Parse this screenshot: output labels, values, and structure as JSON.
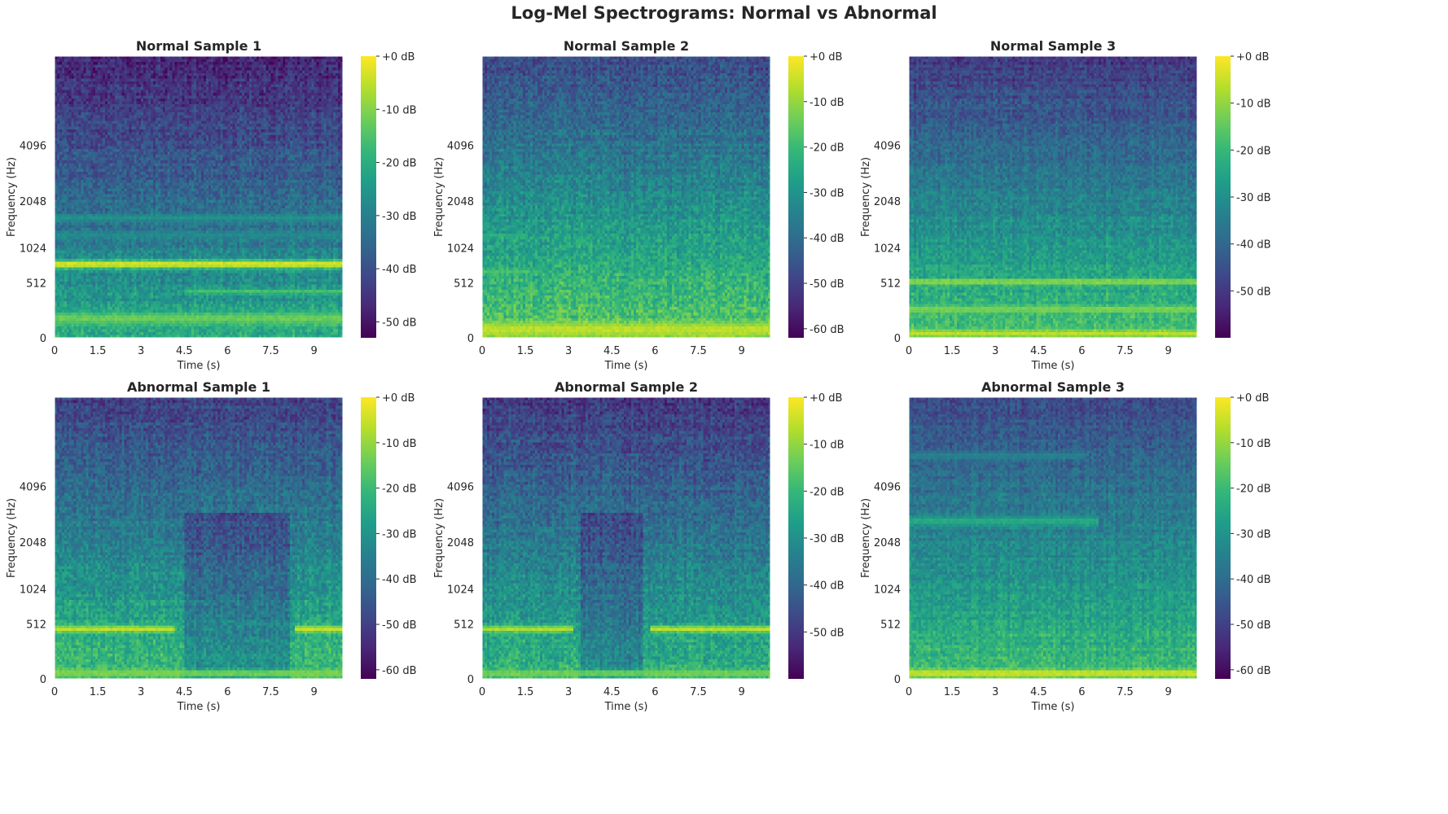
{
  "suptitle": "Log-Mel Spectrograms: Normal vs Abnormal",
  "shared": {
    "xlabel": "Time (s)",
    "ylabel": "Frequency (Hz)",
    "x_ticks": [
      0,
      1.5,
      3,
      4.5,
      6,
      7.5,
      9
    ],
    "x_tick_labels": [
      "0",
      "1.5",
      "3",
      "4.5",
      "6",
      "7.5",
      "9"
    ],
    "xlim": [
      0,
      10
    ],
    "y_ticks_hz": [
      0,
      512,
      1024,
      2048,
      4096
    ],
    "y_tick_labels": [
      "0",
      "512",
      "1024",
      "2048",
      "4096"
    ],
    "y_scale": "mel",
    "colormap": "viridis",
    "colormap_stops": [
      "#440154",
      "#482878",
      "#3e4989",
      "#31688e",
      "#26828e",
      "#1f9e89",
      "#35b779",
      "#6ece58",
      "#b5de2b",
      "#fde725"
    ]
  },
  "chart_data": [
    {
      "type": "heatmap",
      "title": "Normal Sample 1",
      "seed": 11,
      "vmin": -53,
      "vmax": 0,
      "cbar_ticks": [
        0,
        -10,
        -20,
        -30,
        -40,
        -50
      ],
      "cbar_labels": [
        "+0 dB",
        "-10 dB",
        "-20 dB",
        "-30 dB",
        "-40 dB",
        "-50 dB"
      ],
      "base_db": -20,
      "top_db": -48,
      "noise_db": 5,
      "bands": [
        {
          "hz": 760,
          "width_hz": 45,
          "db": -2,
          "t0": 0,
          "t1": 10
        },
        {
          "hz": 1620,
          "width_hz": 60,
          "db": -26,
          "t0": 0,
          "t1": 10
        },
        {
          "hz": 1260,
          "width_hz": 50,
          "db": -28,
          "t0": 0,
          "t1": 10
        },
        {
          "hz": 410,
          "width_hz": 20,
          "db": -16,
          "t0": 4.5,
          "t1": 10
        },
        {
          "hz": 150,
          "width_hz": 40,
          "db": -12,
          "t0": 0,
          "t1": 10
        }
      ]
    },
    {
      "type": "heatmap",
      "title": "Normal Sample 2",
      "seed": 23,
      "vmin": -62,
      "vmax": 0,
      "cbar_ticks": [
        0,
        -10,
        -20,
        -30,
        -40,
        -50,
        -60
      ],
      "cbar_labels": [
        "+0 dB",
        "-10 dB",
        "-20 dB",
        "-30 dB",
        "-40 dB",
        "-50 dB",
        "-60 dB"
      ],
      "base_db": -14,
      "top_db": -48,
      "noise_db": 6,
      "bands": [
        {
          "hz": 1240,
          "width_hz": 30,
          "db": -22,
          "t0": 0,
          "t1": 1.6
        },
        {
          "hz": 660,
          "width_hz": 22,
          "db": -18,
          "t0": 0,
          "t1": 1.6
        },
        {
          "hz": 60,
          "width_hz": 40,
          "db": -6,
          "t0": 0,
          "t1": 10
        }
      ]
    },
    {
      "type": "heatmap",
      "title": "Normal Sample 3",
      "seed": 37,
      "vmin": -60,
      "vmax": 0,
      "cbar_ticks": [
        0,
        -10,
        -20,
        -30,
        -40,
        -50
      ],
      "cbar_labels": [
        "+0 dB",
        "-10 dB",
        "-20 dB",
        "-30 dB",
        "-40 dB",
        "-50 dB"
      ],
      "base_db": -16,
      "top_db": -50,
      "noise_db": 5,
      "bands": [
        {
          "hz": 530,
          "width_hz": 22,
          "db": -8,
          "t0": 0,
          "t1": 10
        },
        {
          "hz": 230,
          "width_hz": 25,
          "db": -12,
          "t0": 0,
          "t1": 10
        },
        {
          "hz": 30,
          "width_hz": 18,
          "db": -6,
          "t0": 0,
          "t1": 10
        }
      ]
    },
    {
      "type": "heatmap",
      "title": "Abnormal Sample 1",
      "seed": 41,
      "vmin": -62,
      "vmax": 0,
      "cbar_ticks": [
        0,
        -10,
        -20,
        -30,
        -40,
        -50,
        -60
      ],
      "cbar_labels": [
        "+0 dB",
        "-10 dB",
        "-20 dB",
        "-30 dB",
        "-40 dB",
        "-50 dB",
        "-60 dB"
      ],
      "base_db": -18,
      "top_db": -50,
      "noise_db": 6,
      "dip": {
        "t0": 4.5,
        "t1": 8.2,
        "db": -10
      },
      "bands": [
        {
          "hz": 450,
          "width_hz": 30,
          "db": -6,
          "t0": 0,
          "t1": 4.2
        },
        {
          "hz": 450,
          "width_hz": 30,
          "db": -5,
          "t0": 8.3,
          "t1": 10
        },
        {
          "hz": 40,
          "width_hz": 18,
          "db": -12,
          "t0": 0,
          "t1": 10
        }
      ]
    },
    {
      "type": "heatmap",
      "title": "Abnormal Sample 2",
      "seed": 53,
      "vmin": -60,
      "vmax": 0,
      "cbar_ticks": [
        0,
        -10,
        -20,
        -30,
        -40,
        -50
      ],
      "cbar_labels": [
        "+0 dB",
        "-10 dB",
        "-20 dB",
        "-30 dB",
        "-40 dB",
        "-50 dB"
      ],
      "base_db": -20,
      "top_db": -50,
      "noise_db": 6,
      "dip": {
        "t0": 3.4,
        "t1": 5.6,
        "db": -9
      },
      "bands": [
        {
          "hz": 450,
          "width_hz": 30,
          "db": -7,
          "t0": 0,
          "t1": 3.2
        },
        {
          "hz": 450,
          "width_hz": 30,
          "db": -6,
          "t0": 5.8,
          "t1": 10
        },
        {
          "hz": 40,
          "width_hz": 18,
          "db": -12,
          "t0": 0,
          "t1": 10
        }
      ]
    },
    {
      "type": "heatmap",
      "title": "Abnormal Sample 3",
      "seed": 67,
      "vmin": -62,
      "vmax": 0,
      "cbar_ticks": [
        0,
        -10,
        -20,
        -30,
        -40,
        -50,
        -60
      ],
      "cbar_labels": [
        "+0 dB",
        "-10 dB",
        "-20 dB",
        "-30 dB",
        "-40 dB",
        "-50 dB",
        "-60 dB"
      ],
      "base_db": -18,
      "top_db": -48,
      "noise_db": 5,
      "bands": [
        {
          "hz": 2700,
          "width_hz": 120,
          "db": -24,
          "t0": 0,
          "t1": 6.6
        },
        {
          "hz": 5800,
          "width_hz": 160,
          "db": -34,
          "t0": 0,
          "t1": 6.1
        },
        {
          "hz": 40,
          "width_hz": 20,
          "db": -4,
          "t0": 0,
          "t1": 10
        }
      ]
    }
  ]
}
